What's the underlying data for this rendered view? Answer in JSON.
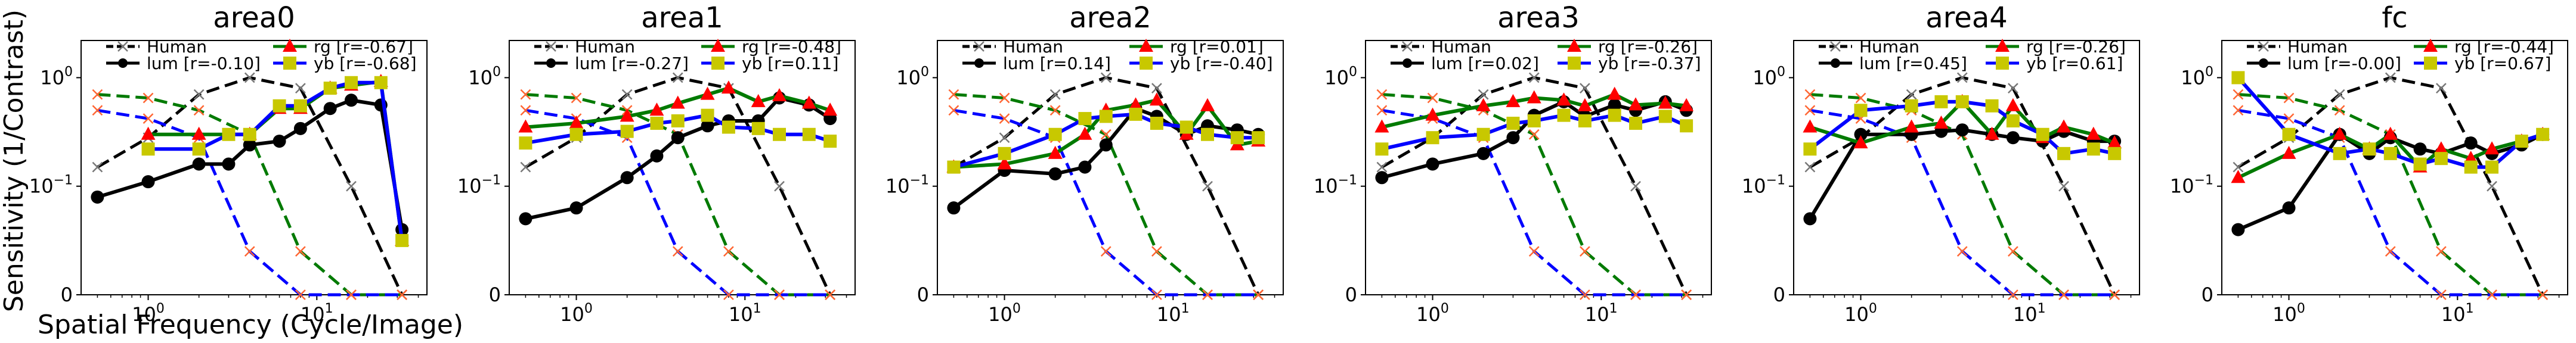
{
  "figure": {
    "ylabel": "Sensitivity (1/Contrast)",
    "xlabel": "Spatial Frequency (Cycle/Image)"
  },
  "colors": {
    "human": "#000000",
    "human_marker": "#777777",
    "lum": "#000000",
    "rg": "#007a00",
    "rg_marker": "#ff0000",
    "yb": "#0000ff",
    "yb_marker": "#c8c800",
    "human_rg": "#007a00",
    "human_yb": "#0000ff",
    "human_xmark": "#ff6633"
  },
  "chart_data": [
    {
      "type": "line",
      "title": "area0",
      "x_scale": "log",
      "xlim": [
        0.4,
        45
      ],
      "y_scale": "symlog",
      "ylim": [
        0,
        2.2
      ],
      "x_ticks": [
        "10^0",
        "10^1"
      ],
      "y_ticks": [
        "0",
        "10^-1",
        "10^0"
      ],
      "legend": [
        "Human",
        "lum [r=-0.10]",
        "rg    [r=-0.67]",
        "yb    [r=-0.68]"
      ],
      "series": [
        {
          "name": "lum [r=-0.10]",
          "x": [
            0.5,
            1,
            2,
            3,
            4,
            6,
            8,
            12,
            16,
            24,
            32
          ],
          "y": [
            0.09,
            0.11,
            0.16,
            0.16,
            0.24,
            0.26,
            0.34,
            0.52,
            0.62,
            0.56,
            0.06
          ]
        },
        {
          "name": "rg    [r=-0.67]",
          "x": [
            1,
            2,
            4,
            6,
            8,
            12,
            16,
            24,
            32
          ],
          "y": [
            0.3,
            0.3,
            0.3,
            0.52,
            0.52,
            0.8,
            0.85,
            0.92,
            0.05
          ]
        },
        {
          "name": "yb    [r=-0.68]",
          "x": [
            1,
            2,
            3,
            4,
            6,
            8,
            12,
            16,
            24,
            32
          ],
          "y": [
            0.22,
            0.22,
            0.3,
            0.3,
            0.55,
            0.55,
            0.8,
            0.9,
            0.9,
            0.05
          ]
        }
      ]
    },
    {
      "type": "line",
      "title": "area1",
      "x_scale": "log",
      "xlim": [
        0.4,
        45
      ],
      "y_scale": "symlog",
      "ylim": [
        0,
        2.2
      ],
      "x_ticks": [
        "10^0",
        "10^1"
      ],
      "y_ticks": [
        "0",
        "10^-1",
        "10^0"
      ],
      "legend": [
        "Human",
        "lum [r=-0.27]",
        "rg    [r=-0.48]",
        "yb    [r=0.11]"
      ],
      "series": [
        {
          "name": "lum [r=-0.27]",
          "x": [
            0.5,
            1,
            2,
            3,
            4,
            6,
            8,
            12,
            16,
            24,
            32
          ],
          "y": [
            0.07,
            0.08,
            0.12,
            0.19,
            0.28,
            0.36,
            0.4,
            0.4,
            0.65,
            0.56,
            0.42
          ]
        },
        {
          "name": "rg    [r=-0.48]",
          "x": [
            0.5,
            1,
            2,
            3,
            4,
            6,
            8,
            12,
            16,
            24,
            32
          ],
          "y": [
            0.35,
            0.38,
            0.44,
            0.5,
            0.58,
            0.7,
            0.8,
            0.6,
            0.68,
            0.58,
            0.5
          ]
        },
        {
          "name": "yb    [r=0.11]",
          "x": [
            0.5,
            1,
            2,
            3,
            4,
            6,
            8,
            12,
            16,
            24,
            32
          ],
          "y": [
            0.25,
            0.3,
            0.32,
            0.38,
            0.4,
            0.45,
            0.35,
            0.34,
            0.3,
            0.3,
            0.26
          ]
        }
      ]
    },
    {
      "type": "line",
      "title": "area2",
      "x_scale": "log",
      "xlim": [
        0.4,
        45
      ],
      "y_scale": "symlog",
      "ylim": [
        0,
        2.2
      ],
      "x_ticks": [
        "10^0",
        "10^1"
      ],
      "y_ticks": [
        "0",
        "10^-1",
        "10^0"
      ],
      "legend": [
        "Human",
        "lum [r=0.14]",
        "rg    [r=0.01]",
        "yb    [r=-0.40]"
      ],
      "series": [
        {
          "name": "lum [r=0.14]",
          "x": [
            0.5,
            1,
            2,
            3,
            4,
            6,
            8,
            12,
            16,
            24,
            32
          ],
          "y": [
            0.08,
            0.14,
            0.13,
            0.15,
            0.24,
            0.52,
            0.44,
            0.3,
            0.36,
            0.33,
            0.3
          ]
        },
        {
          "name": "rg    [r=0.01]",
          "x": [
            0.5,
            1,
            2,
            3,
            4,
            6,
            8,
            12,
            16,
            24,
            32
          ],
          "y": [
            0.15,
            0.16,
            0.2,
            0.3,
            0.5,
            0.56,
            0.62,
            0.3,
            0.55,
            0.24,
            0.26
          ]
        },
        {
          "name": "yb    [r=-0.40]",
          "x": [
            0.5,
            1,
            2,
            3,
            4,
            6,
            8,
            12,
            16,
            24,
            32
          ],
          "y": [
            0.15,
            0.2,
            0.3,
            0.42,
            0.44,
            0.46,
            0.38,
            0.35,
            0.3,
            0.28,
            0.28
          ]
        }
      ]
    },
    {
      "type": "line",
      "title": "area3",
      "x_scale": "log",
      "xlim": [
        0.4,
        45
      ],
      "y_scale": "symlog",
      "ylim": [
        0,
        2.2
      ],
      "x_ticks": [
        "10^0",
        "10^1"
      ],
      "y_ticks": [
        "0",
        "10^-1",
        "10^0"
      ],
      "legend": [
        "Human",
        "lum [r=0.02]",
        "rg    [r=-0.26]",
        "yb    [r=-0.37]"
      ],
      "series": [
        {
          "name": "lum [r=0.02]",
          "x": [
            0.5,
            1,
            2,
            3,
            4,
            6,
            8,
            12,
            16,
            24,
            32
          ],
          "y": [
            0.12,
            0.16,
            0.2,
            0.28,
            0.45,
            0.6,
            0.44,
            0.56,
            0.5,
            0.6,
            0.5
          ]
        },
        {
          "name": "rg    [r=-0.26]",
          "x": [
            0.5,
            1,
            2,
            3,
            4,
            6,
            8,
            12,
            16,
            24,
            32
          ],
          "y": [
            0.35,
            0.45,
            0.55,
            0.6,
            0.65,
            0.62,
            0.55,
            0.7,
            0.56,
            0.58,
            0.55
          ]
        },
        {
          "name": "yb    [r=-0.37]",
          "x": [
            0.5,
            1,
            2,
            3,
            4,
            6,
            8,
            12,
            16,
            24,
            32
          ],
          "y": [
            0.22,
            0.28,
            0.3,
            0.38,
            0.4,
            0.45,
            0.4,
            0.45,
            0.38,
            0.44,
            0.36
          ]
        }
      ]
    },
    {
      "type": "line",
      "title": "area4",
      "x_scale": "log",
      "xlim": [
        0.4,
        45
      ],
      "y_scale": "symlog",
      "ylim": [
        0,
        2.2
      ],
      "x_ticks": [
        "10^0",
        "10^1"
      ],
      "y_ticks": [
        "0",
        "10^-1",
        "10^0"
      ],
      "legend": [
        "Human",
        "lum [r=0.45]",
        "rg    [r=-0.26]",
        "yb    [r=0.61]"
      ],
      "series": [
        {
          "name": "lum [r=0.45]",
          "x": [
            0.5,
            1,
            2,
            3,
            4,
            6,
            8,
            12,
            16,
            24,
            32
          ],
          "y": [
            0.07,
            0.3,
            0.3,
            0.32,
            0.33,
            0.3,
            0.28,
            0.26,
            0.32,
            0.26,
            0.26
          ]
        },
        {
          "name": "rg    [r=-0.26]",
          "x": [
            0.5,
            1,
            2,
            3,
            4,
            6,
            8,
            12,
            16,
            24,
            32
          ],
          "y": [
            0.35,
            0.25,
            0.35,
            0.38,
            0.6,
            0.3,
            0.55,
            0.28,
            0.35,
            0.3,
            0.25
          ]
        },
        {
          "name": "yb    [r=0.61]",
          "x": [
            0.5,
            1,
            2,
            3,
            4,
            6,
            8,
            12,
            16,
            24,
            32
          ],
          "y": [
            0.22,
            0.5,
            0.55,
            0.6,
            0.6,
            0.55,
            0.4,
            0.3,
            0.2,
            0.22,
            0.2
          ]
        }
      ]
    },
    {
      "type": "line",
      "title": "fc",
      "x_scale": "log",
      "xlim": [
        0.4,
        45
      ],
      "y_scale": "symlog",
      "ylim": [
        0,
        2.2
      ],
      "x_ticks": [
        "10^0",
        "10^1"
      ],
      "y_ticks": [
        "0",
        "10^-1",
        "10^0"
      ],
      "legend": [
        "Human",
        "lum [r=-0.00]",
        "rg    [r=-0.44]",
        "yb    [r=0.67]"
      ],
      "series": [
        {
          "name": "lum [r=-0.00]",
          "x": [
            0.5,
            1,
            2,
            3,
            4,
            6,
            8,
            12,
            16,
            24,
            32
          ],
          "y": [
            0.06,
            0.08,
            0.3,
            0.2,
            0.28,
            0.22,
            0.2,
            0.25,
            0.2,
            0.24,
            0.3
          ]
        },
        {
          "name": "rg    [r=-0.44]",
          "x": [
            0.5,
            1,
            2,
            3,
            4,
            6,
            8,
            12,
            16,
            24,
            32
          ],
          "y": [
            0.12,
            0.2,
            0.3,
            0.22,
            0.3,
            0.15,
            0.22,
            0.18,
            0.22,
            0.26,
            0.3
          ]
        },
        {
          "name": "yb    [r=0.67]",
          "x": [
            0.5,
            1,
            2,
            3,
            4,
            6,
            8,
            12,
            16,
            24,
            32
          ],
          "y": [
            1.0,
            0.3,
            0.2,
            0.22,
            0.2,
            0.16,
            0.18,
            0.15,
            0.15,
            0.26,
            0.3
          ]
        }
      ]
    }
  ],
  "human_reference": {
    "lum": {
      "x": [
        0.5,
        1,
        2,
        4,
        8,
        16,
        32
      ],
      "y": [
        0.15,
        0.28,
        0.7,
        1.0,
        0.8,
        0.1,
        0.0
      ]
    },
    "rg": {
      "x": [
        0.5,
        1,
        2,
        4,
        8,
        16,
        32
      ],
      "y": [
        0.7,
        0.65,
        0.5,
        0.3,
        0.04,
        0.0,
        0.0
      ]
    },
    "yb": {
      "x": [
        0.5,
        1,
        2,
        4,
        8,
        16,
        32
      ],
      "y": [
        0.5,
        0.42,
        0.28,
        0.04,
        0.0,
        0.0,
        0.0
      ]
    }
  }
}
